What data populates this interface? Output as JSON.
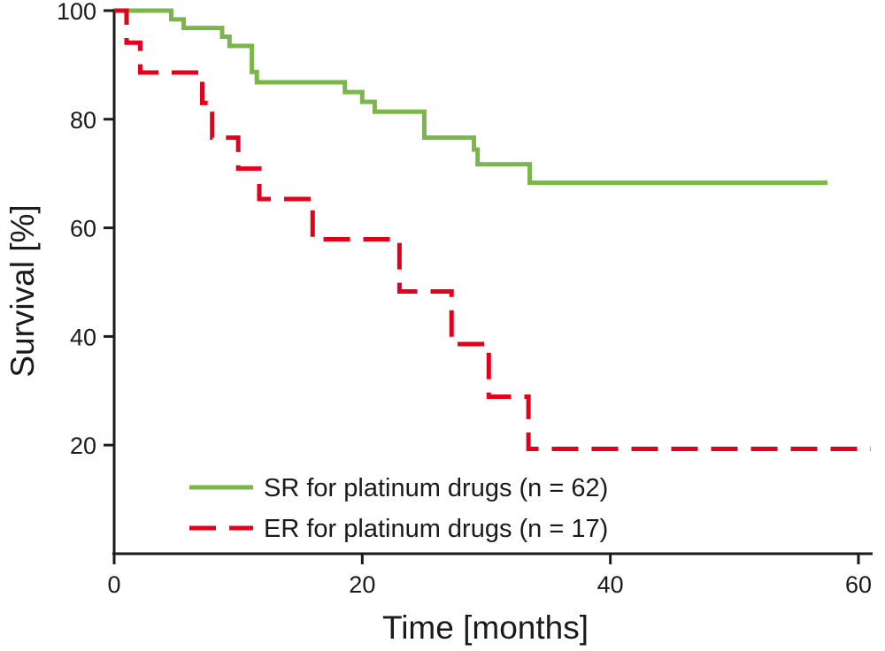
{
  "chart_data": {
    "type": "line",
    "step": true,
    "xlabel": "Time [months]",
    "ylabel": "Survival [%]",
    "xlim": [
      0,
      61
    ],
    "ylim": [
      0,
      100
    ],
    "xticks": [
      0,
      20,
      40,
      60
    ],
    "yticks": [
      20,
      40,
      60,
      80,
      100
    ],
    "grid": false,
    "legend_position": "bottom-center",
    "series": [
      {
        "name": "SR for platinum drugs (n = 62)",
        "color": "#7ab648",
        "style": "solid",
        "x": [
          0,
          4.6,
          5.6,
          8.7,
          9.3,
          11.1,
          11.5,
          18.6,
          20.0,
          21.0,
          25.0,
          29.0,
          29.3,
          33.5,
          57.5
        ],
        "y": [
          100,
          98.4,
          96.8,
          95.2,
          93.5,
          88.7,
          86.8,
          85.0,
          83.2,
          81.4,
          76.6,
          74.4,
          71.7,
          68.3,
          68.3
        ]
      },
      {
        "name": "ER for platinum drugs (n = 17)",
        "color": "#e3001b",
        "style": "dashed",
        "x": [
          0,
          1.0,
          2.1,
          7.1,
          7.9,
          10.0,
          11.7,
          16.0,
          23.0,
          27.2,
          30.2,
          33.4,
          61.0
        ],
        "y": [
          100,
          94.1,
          88.6,
          83.0,
          76.6,
          70.9,
          65.3,
          57.9,
          48.3,
          38.6,
          28.9,
          19.3,
          19.3
        ]
      }
    ]
  }
}
